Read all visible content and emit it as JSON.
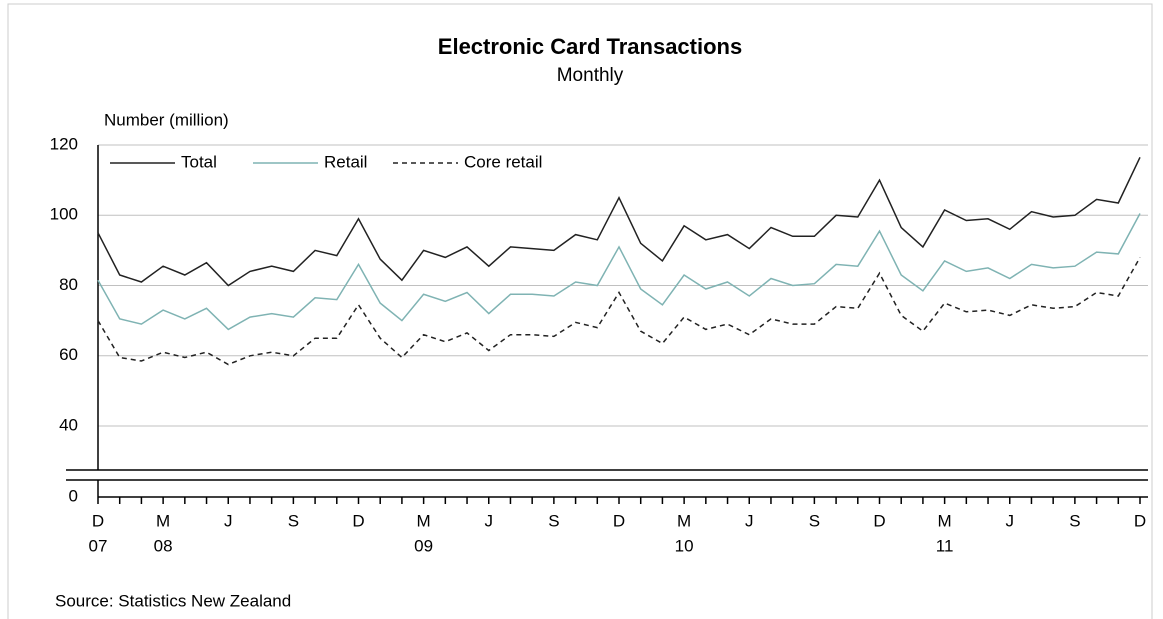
{
  "chart_data": {
    "type": "line",
    "title": "Electronic Card Transactions",
    "subtitle": "Monthly",
    "y_axis_label": "Number (million)",
    "source": "Source: Statistics New Zealand",
    "categories": [
      "D",
      null,
      null,
      "M",
      null,
      null,
      "J",
      null,
      null,
      "S",
      null,
      null,
      "D",
      null,
      null,
      "M",
      null,
      null,
      "J",
      null,
      null,
      "S",
      null,
      null,
      "D",
      null,
      null,
      "M",
      null,
      null,
      "J",
      null,
      null,
      "S",
      null,
      null,
      "D",
      null,
      null,
      "M",
      null,
      null,
      "J",
      null,
      null,
      "S",
      null,
      null,
      "D"
    ],
    "years": [
      "07",
      null,
      null,
      "08",
      null,
      null,
      null,
      null,
      null,
      null,
      null,
      null,
      null,
      null,
      null,
      "09",
      null,
      null,
      null,
      null,
      null,
      null,
      null,
      null,
      null,
      null,
      null,
      "10",
      null,
      null,
      null,
      null,
      null,
      null,
      null,
      null,
      null,
      null,
      null,
      "11",
      null,
      null,
      null,
      null,
      null,
      null,
      null,
      null,
      null
    ],
    "series": [
      {
        "name": "Total",
        "color": "#222222",
        "style": "solid",
        "values": [
          95,
          83,
          81,
          85.5,
          83,
          86.5,
          80,
          84,
          85.5,
          84,
          90,
          88.5,
          99,
          87.5,
          81.5,
          90,
          88,
          91,
          85.5,
          91,
          90.5,
          90,
          94.5,
          93,
          105,
          92,
          87,
          97,
          93,
          94.5,
          90.5,
          96.5,
          94,
          94,
          100,
          99.5,
          110,
          96.5,
          91,
          101.5,
          98.5,
          99,
          96,
          101,
          99.5,
          100,
          104.5,
          103.5,
          116.5
        ]
      },
      {
        "name": "Retail",
        "color": "#7fb3b3",
        "style": "solid",
        "values": [
          81.5,
          70.5,
          69,
          73,
          70.5,
          73.5,
          67.5,
          71,
          72,
          71,
          76.5,
          76,
          86,
          75,
          70,
          77.5,
          75.5,
          78,
          72,
          77.5,
          77.5,
          77,
          81,
          80,
          91,
          79,
          74.5,
          83,
          79,
          81,
          77,
          82,
          80,
          80.5,
          86,
          85.5,
          95.5,
          83,
          78.5,
          87,
          84,
          85,
          82,
          86,
          85,
          85.5,
          89.5,
          89,
          100.5
        ]
      },
      {
        "name": "Core retail",
        "color": "#222222",
        "style": "dashed",
        "values": [
          70,
          59.5,
          58.5,
          61,
          59.5,
          61,
          57.5,
          60,
          61,
          60,
          65,
          65,
          74.5,
          65,
          59.5,
          66,
          64,
          66.5,
          61.5,
          66,
          66,
          65.5,
          69.5,
          68,
          78,
          67,
          63.5,
          71,
          67.5,
          69,
          66,
          70.5,
          69,
          69,
          74,
          73.5,
          83.5,
          71.5,
          67,
          75,
          72.5,
          73,
          71.5,
          74.5,
          73.5,
          74,
          78,
          77,
          88
        ]
      }
    ],
    "ylim": [
      0,
      120
    ],
    "yticks": [
      0,
      40,
      60,
      80,
      100,
      120
    ],
    "axis_break": true,
    "grid": true,
    "legend": "top-left"
  }
}
